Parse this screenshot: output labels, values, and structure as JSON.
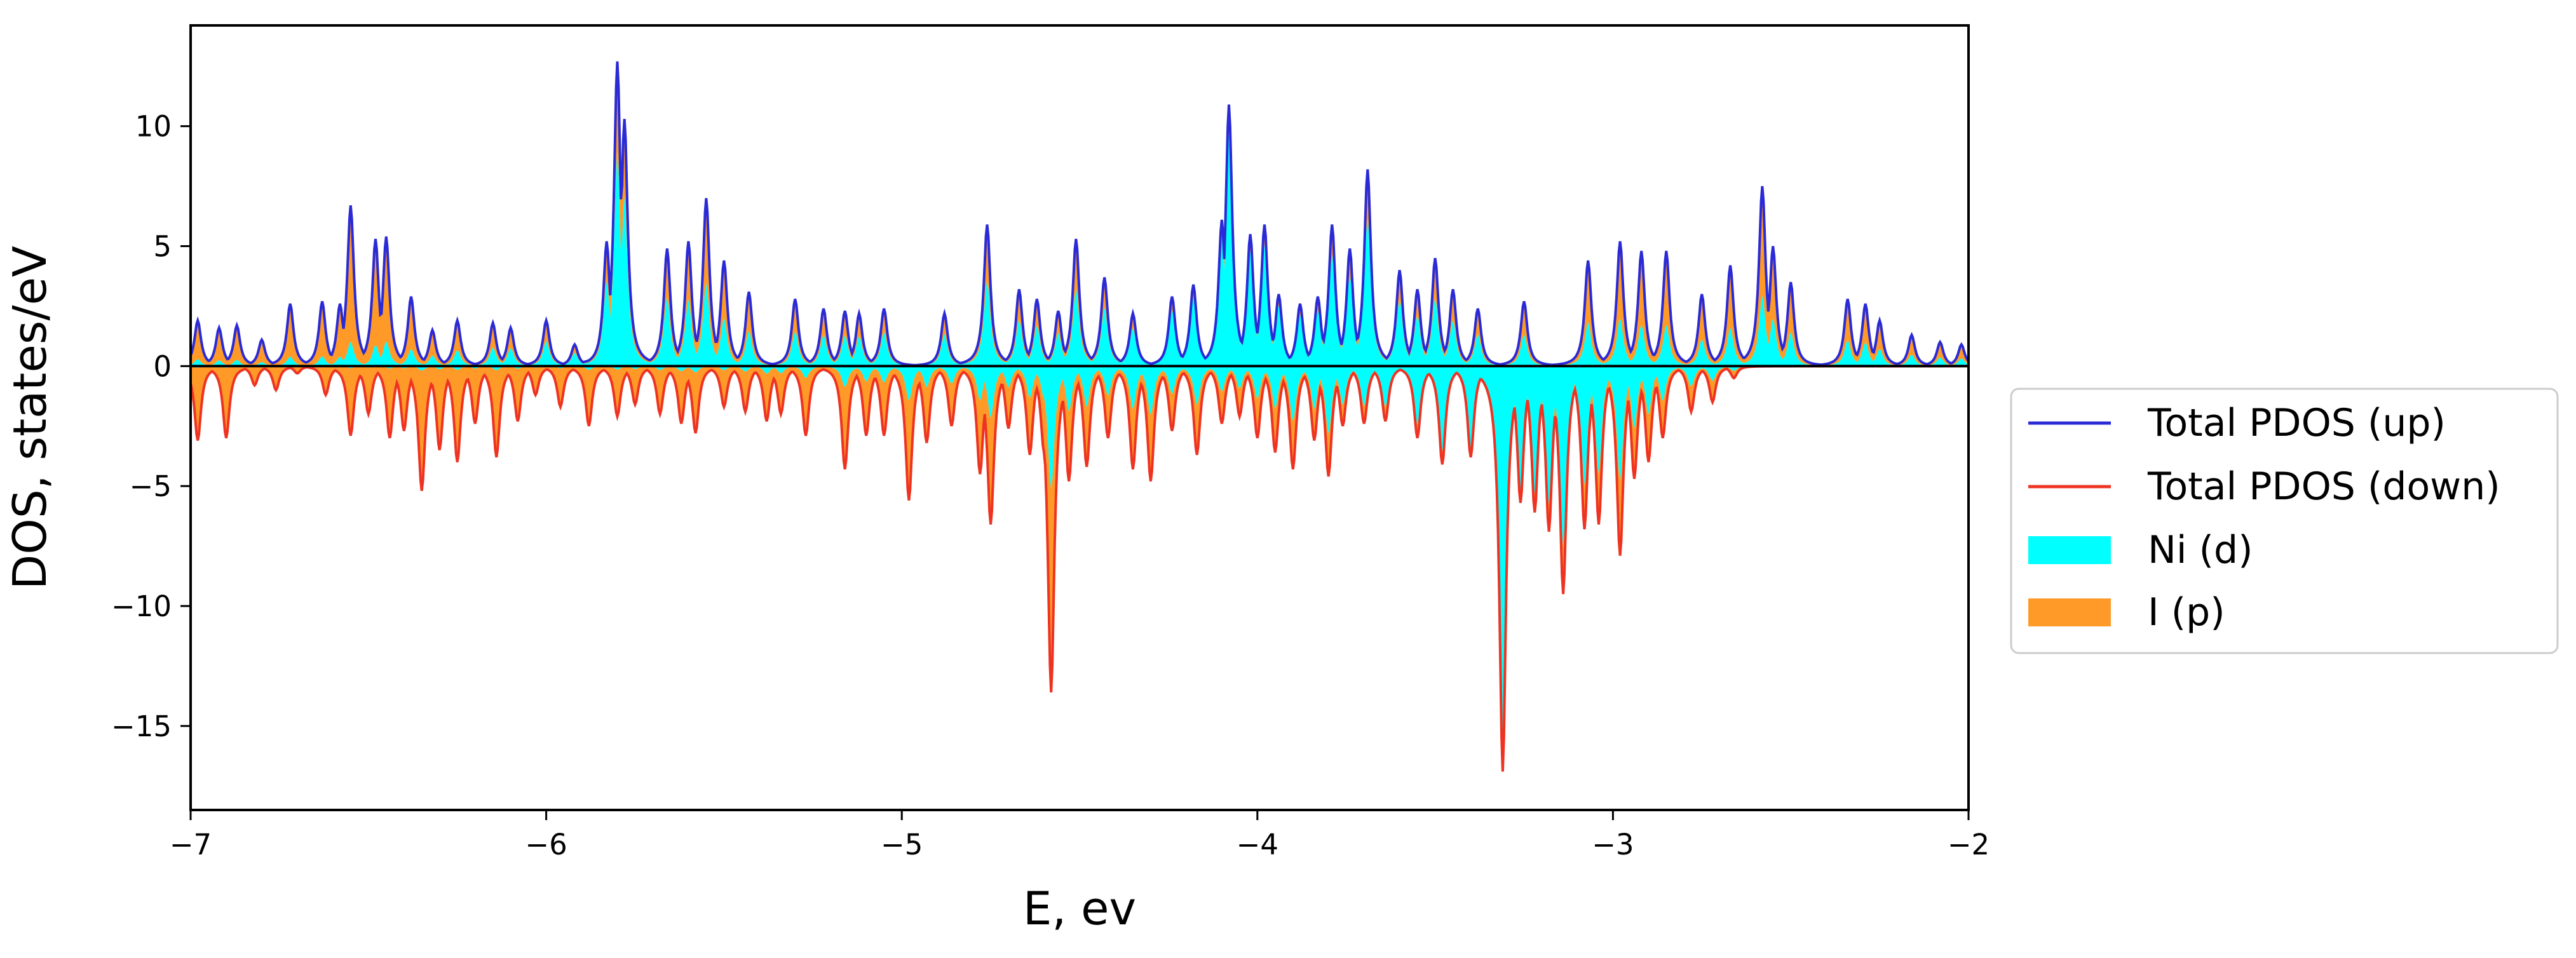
{
  "chart_data": {
    "type": "area",
    "title": "",
    "xlabel": "E, ev",
    "ylabel": "DOS, states/eV",
    "xlim": [
      -7,
      -2
    ],
    "ylim": [
      -18.5,
      14.2
    ],
    "xticks": [
      -7,
      -6,
      -5,
      -4,
      -3,
      -2
    ],
    "xtick_labels": [
      "−7",
      "−6",
      "−5",
      "−4",
      "−3",
      "−2"
    ],
    "yticks": [
      -15,
      -10,
      -5,
      0,
      5,
      10
    ],
    "ytick_labels": [
      "−15",
      "−10",
      "−5",
      "0",
      "5",
      "10"
    ],
    "grid": false,
    "legend_position": "outside right, center",
    "colors": {
      "total_up": "#2a2ad6",
      "total_down": "#ee3322",
      "ni_d": "#00ffff",
      "i_p": "#ff9a28",
      "zero_line": "#000000"
    },
    "series": [
      {
        "name": "Total PDOS (up)",
        "kind": "line",
        "peaks": [
          [
            -6.98,
            1.9
          ],
          [
            -6.92,
            1.6
          ],
          [
            -6.87,
            1.7
          ],
          [
            -6.8,
            1.1
          ],
          [
            -6.72,
            2.6
          ],
          [
            -6.63,
            2.7
          ],
          [
            -6.58,
            2.6
          ],
          [
            -6.55,
            6.7
          ],
          [
            -6.48,
            5.3
          ],
          [
            -6.45,
            5.4
          ],
          [
            -6.38,
            2.9
          ],
          [
            -6.32,
            1.5
          ],
          [
            -6.25,
            1.9
          ],
          [
            -6.15,
            1.8
          ],
          [
            -6.1,
            1.6
          ],
          [
            -6.0,
            1.9
          ],
          [
            -5.92,
            0.9
          ],
          [
            -5.83,
            5.2
          ],
          [
            -5.8,
            12.7
          ],
          [
            -5.78,
            10.3
          ],
          [
            -5.66,
            4.9
          ],
          [
            -5.6,
            5.2
          ],
          [
            -5.55,
            7.0
          ],
          [
            -5.5,
            4.4
          ],
          [
            -5.43,
            3.1
          ],
          [
            -5.3,
            2.8
          ],
          [
            -5.22,
            2.4
          ],
          [
            -5.16,
            2.3
          ],
          [
            -5.12,
            2.2
          ],
          [
            -5.05,
            2.4
          ],
          [
            -4.88,
            2.2
          ],
          [
            -4.76,
            5.9
          ],
          [
            -4.67,
            3.2
          ],
          [
            -4.62,
            2.8
          ],
          [
            -4.56,
            2.3
          ],
          [
            -4.51,
            5.3
          ],
          [
            -4.43,
            3.7
          ],
          [
            -4.35,
            2.2
          ],
          [
            -4.24,
            2.9
          ],
          [
            -4.18,
            3.4
          ],
          [
            -4.1,
            6.1
          ],
          [
            -4.08,
            10.9
          ],
          [
            -4.02,
            5.5
          ],
          [
            -3.98,
            5.9
          ],
          [
            -3.94,
            3.0
          ],
          [
            -3.88,
            2.6
          ],
          [
            -3.83,
            2.9
          ],
          [
            -3.79,
            5.9
          ],
          [
            -3.74,
            4.9
          ],
          [
            -3.69,
            8.2
          ],
          [
            -3.6,
            4.0
          ],
          [
            -3.55,
            3.2
          ],
          [
            -3.5,
            4.5
          ],
          [
            -3.45,
            3.2
          ],
          [
            -3.38,
            2.4
          ],
          [
            -3.25,
            2.7
          ],
          [
            -3.07,
            4.4
          ],
          [
            -2.98,
            5.2
          ],
          [
            -2.92,
            4.8
          ],
          [
            -2.85,
            4.8
          ],
          [
            -2.75,
            3.0
          ],
          [
            -2.67,
            4.2
          ],
          [
            -2.58,
            7.5
          ],
          [
            -2.55,
            5.0
          ],
          [
            -2.5,
            3.5
          ],
          [
            -2.34,
            2.8
          ],
          [
            -2.29,
            2.6
          ],
          [
            -2.25,
            1.9
          ],
          [
            -2.16,
            1.3
          ],
          [
            -2.08,
            1.0
          ],
          [
            -2.02,
            0.9
          ]
        ],
        "baseline": 0
      },
      {
        "name": "Total PDOS (down)",
        "kind": "line",
        "troughs": [
          [
            -6.98,
            -3.1
          ],
          [
            -6.9,
            -3.0
          ],
          [
            -6.82,
            -0.8
          ],
          [
            -6.76,
            -1.0
          ],
          [
            -6.7,
            -0.3
          ],
          [
            -6.62,
            -1.2
          ],
          [
            -6.55,
            -2.9
          ],
          [
            -6.5,
            -2.0
          ],
          [
            -6.44,
            -3.0
          ],
          [
            -6.4,
            -2.7
          ],
          [
            -6.35,
            -5.2
          ],
          [
            -6.3,
            -3.5
          ],
          [
            -6.25,
            -4.0
          ],
          [
            -6.2,
            -2.4
          ],
          [
            -6.14,
            -3.8
          ],
          [
            -6.08,
            -2.3
          ],
          [
            -6.03,
            -1.2
          ],
          [
            -5.96,
            -1.7
          ],
          [
            -5.88,
            -2.5
          ],
          [
            -5.8,
            -2.1
          ],
          [
            -5.75,
            -1.6
          ],
          [
            -5.68,
            -2.0
          ],
          [
            -5.62,
            -2.4
          ],
          [
            -5.58,
            -2.8
          ],
          [
            -5.5,
            -1.7
          ],
          [
            -5.44,
            -1.9
          ],
          [
            -5.38,
            -2.3
          ],
          [
            -5.34,
            -2.0
          ],
          [
            -5.27,
            -2.9
          ],
          [
            -5.16,
            -4.3
          ],
          [
            -5.1,
            -2.9
          ],
          [
            -5.05,
            -2.9
          ],
          [
            -4.98,
            -5.6
          ],
          [
            -4.93,
            -3.2
          ],
          [
            -4.86,
            -2.5
          ],
          [
            -4.78,
            -4.5
          ],
          [
            -4.75,
            -6.6
          ],
          [
            -4.7,
            -2.6
          ],
          [
            -4.64,
            -3.7
          ],
          [
            -4.6,
            -3.6
          ],
          [
            -4.58,
            -13.6
          ],
          [
            -4.53,
            -4.8
          ],
          [
            -4.48,
            -4.2
          ],
          [
            -4.42,
            -3.0
          ],
          [
            -4.35,
            -4.3
          ],
          [
            -4.3,
            -4.8
          ],
          [
            -4.24,
            -2.7
          ],
          [
            -4.17,
            -3.7
          ],
          [
            -4.1,
            -2.4
          ],
          [
            -4.05,
            -2.1
          ],
          [
            -4.0,
            -3.0
          ],
          [
            -3.95,
            -3.6
          ],
          [
            -3.9,
            -4.3
          ],
          [
            -3.84,
            -3.1
          ],
          [
            -3.8,
            -4.6
          ],
          [
            -3.76,
            -2.5
          ],
          [
            -3.7,
            -2.4
          ],
          [
            -3.64,
            -2.3
          ],
          [
            -3.55,
            -3.0
          ],
          [
            -3.48,
            -4.1
          ],
          [
            -3.4,
            -3.8
          ],
          [
            -3.31,
            -16.9
          ],
          [
            -3.26,
            -5.7
          ],
          [
            -3.22,
            -6.1
          ],
          [
            -3.18,
            -6.9
          ],
          [
            -3.14,
            -9.5
          ],
          [
            -3.08,
            -6.8
          ],
          [
            -3.04,
            -6.6
          ],
          [
            -2.98,
            -7.9
          ],
          [
            -2.94,
            -4.7
          ],
          [
            -2.9,
            -4.0
          ],
          [
            -2.86,
            -3.0
          ],
          [
            -2.78,
            -1.9
          ],
          [
            -2.72,
            -1.5
          ],
          [
            -2.66,
            -0.5
          ]
        ],
        "baseline": 0
      },
      {
        "name": "Ni (d)",
        "kind": "filled area (share of total, both spins)",
        "up_share": [
          [
            -7.0,
            0.15
          ],
          [
            -6.5,
            0.15
          ],
          [
            -5.8,
            0.7
          ],
          [
            -5.5,
            0.45
          ],
          [
            -5.0,
            0.6
          ],
          [
            -4.5,
            0.6
          ],
          [
            -4.1,
            0.9
          ],
          [
            -3.7,
            0.75
          ],
          [
            -3.3,
            0.5
          ],
          [
            -2.9,
            0.35
          ],
          [
            -2.5,
            0.4
          ],
          [
            -2.0,
            0.35
          ]
        ],
        "down_share": [
          [
            -7.0,
            0.02
          ],
          [
            -6.5,
            0.03
          ],
          [
            -6.0,
            0.05
          ],
          [
            -5.5,
            0.1
          ],
          [
            -5.0,
            0.25
          ],
          [
            -4.5,
            0.4
          ],
          [
            -4.0,
            0.45
          ],
          [
            -3.5,
            0.85
          ],
          [
            -3.3,
            0.95
          ],
          [
            -3.1,
            0.75
          ],
          [
            -2.9,
            0.5
          ],
          [
            -2.7,
            0.4
          ],
          [
            -2.0,
            0.3
          ]
        ]
      },
      {
        "name": "I (p)",
        "kind": "filled area (remainder of total)"
      }
    ]
  }
}
